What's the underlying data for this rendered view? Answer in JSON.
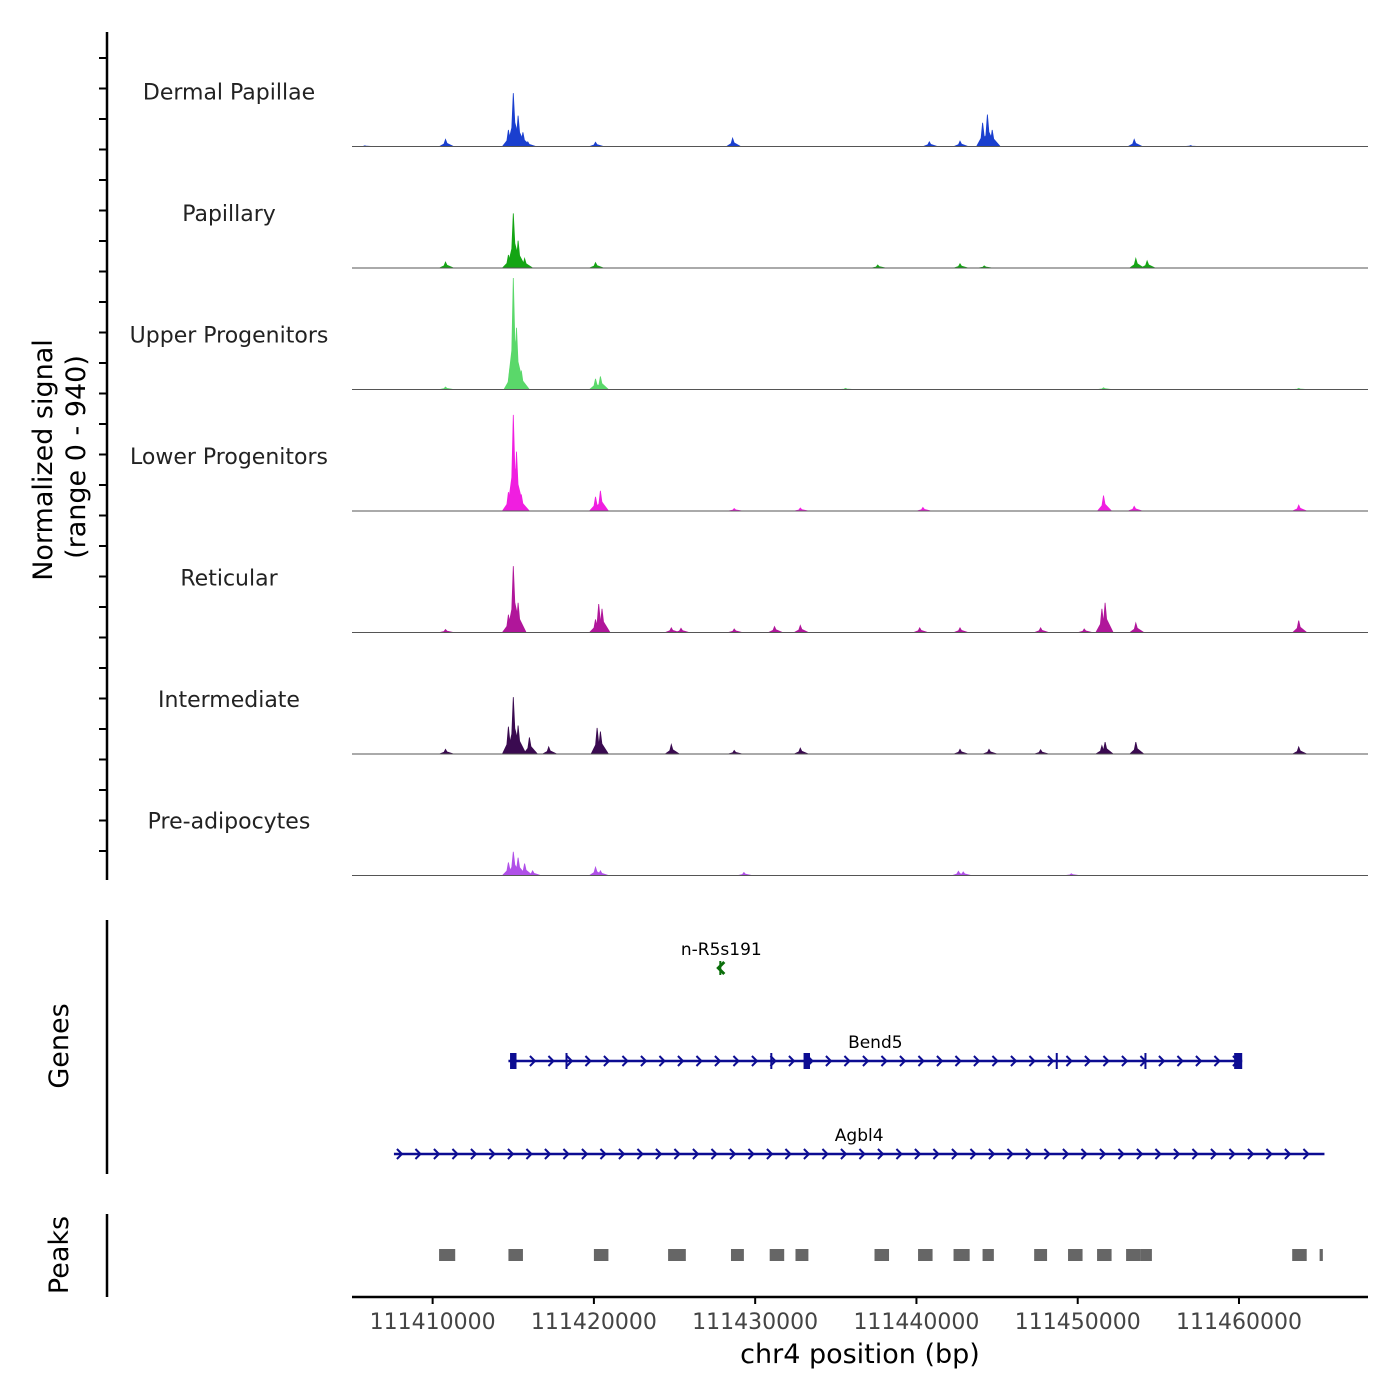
{
  "chart_data": {
    "type": "area",
    "title": "",
    "region": {
      "chrom": "chr4",
      "start": 111405000,
      "end": 111468000
    },
    "ylabel": "Normalized signal",
    "ylabel_range": "(range 0 - 940)",
    "ylim": [
      0,
      940
    ],
    "xlabel": "chr4 position (bp)",
    "x_ticks": [
      "111410000",
      "111420000",
      "111430000",
      "111440000",
      "111450000",
      "111460000"
    ],
    "x_tick_values": [
      111410000,
      111420000,
      111430000,
      111440000,
      111450000,
      111460000
    ],
    "tracks": [
      {
        "name": "Dermal Papillae",
        "color": "#1a3fcf",
        "peaks": [
          [
            111405800,
            6
          ],
          [
            111410800,
            60
          ],
          [
            111414700,
            140
          ],
          [
            111415000,
            450
          ],
          [
            111415300,
            260
          ],
          [
            111415600,
            120
          ],
          [
            111415900,
            40
          ],
          [
            111420100,
            35
          ],
          [
            111428600,
            70
          ],
          [
            111440800,
            40
          ],
          [
            111442700,
            45
          ],
          [
            111444100,
            200
          ],
          [
            111444400,
            270
          ],
          [
            111444700,
            140
          ],
          [
            111453500,
            60
          ],
          [
            111457000,
            8
          ]
        ]
      },
      {
        "name": "Papillary",
        "color": "#14a514",
        "peaks": [
          [
            111410800,
            50
          ],
          [
            111414700,
            110
          ],
          [
            111415000,
            460
          ],
          [
            111415300,
            230
          ],
          [
            111415700,
            80
          ],
          [
            111420100,
            45
          ],
          [
            111437600,
            25
          ],
          [
            111442700,
            35
          ],
          [
            111444200,
            18
          ],
          [
            111453600,
            80
          ],
          [
            111454300,
            60
          ]
        ]
      },
      {
        "name": "Upper Progenitors",
        "color": "#5ad86a",
        "peaks": [
          [
            111410800,
            20
          ],
          [
            111414800,
            190
          ],
          [
            111415000,
            940
          ],
          [
            111415200,
            520
          ],
          [
            111415500,
            160
          ],
          [
            111420100,
            90
          ],
          [
            111420400,
            110
          ],
          [
            111435600,
            10
          ],
          [
            111451600,
            15
          ],
          [
            111463700,
            10
          ]
        ]
      },
      {
        "name": "Lower Progenitors",
        "color": "#f01ee0",
        "peaks": [
          [
            111414700,
            160
          ],
          [
            111415000,
            810
          ],
          [
            111415200,
            500
          ],
          [
            111415500,
            140
          ],
          [
            111420100,
            120
          ],
          [
            111420400,
            170
          ],
          [
            111428700,
            20
          ],
          [
            111432800,
            25
          ],
          [
            111440400,
            30
          ],
          [
            111451600,
            130
          ],
          [
            111453500,
            40
          ],
          [
            111463700,
            50
          ]
        ]
      },
      {
        "name": "Reticular",
        "color": "#b0169a",
        "peaks": [
          [
            111410800,
            25
          ],
          [
            111414700,
            150
          ],
          [
            111415000,
            560
          ],
          [
            111415300,
            250
          ],
          [
            111420100,
            110
          ],
          [
            111420300,
            240
          ],
          [
            111420500,
            200
          ],
          [
            111424800,
            40
          ],
          [
            111425400,
            35
          ],
          [
            111428700,
            30
          ],
          [
            111431200,
            50
          ],
          [
            111432800,
            60
          ],
          [
            111440200,
            40
          ],
          [
            111442700,
            40
          ],
          [
            111447700,
            40
          ],
          [
            111450400,
            30
          ],
          [
            111451500,
            200
          ],
          [
            111451700,
            250
          ],
          [
            111453600,
            80
          ],
          [
            111463700,
            100
          ]
        ]
      },
      {
        "name": "Intermediate",
        "color": "#3a0a50",
        "peaks": [
          [
            111410800,
            40
          ],
          [
            111414700,
            230
          ],
          [
            111415000,
            480
          ],
          [
            111415300,
            240
          ],
          [
            111416000,
            140
          ],
          [
            111417200,
            60
          ],
          [
            111420200,
            220
          ],
          [
            111420400,
            190
          ],
          [
            111424800,
            80
          ],
          [
            111428700,
            30
          ],
          [
            111432800,
            50
          ],
          [
            111442700,
            40
          ],
          [
            111444500,
            40
          ],
          [
            111447700,
            35
          ],
          [
            111451500,
            70
          ],
          [
            111451700,
            100
          ],
          [
            111453600,
            100
          ],
          [
            111463700,
            60
          ]
        ]
      },
      {
        "name": "Pre-adipocytes",
        "color": "#b050e8",
        "peaks": [
          [
            111414700,
            110
          ],
          [
            111415000,
            200
          ],
          [
            111415300,
            150
          ],
          [
            111415700,
            100
          ],
          [
            111416200,
            40
          ],
          [
            111420100,
            70
          ],
          [
            111420400,
            40
          ],
          [
            111429300,
            25
          ],
          [
            111442600,
            35
          ],
          [
            111442900,
            30
          ],
          [
            111449600,
            15
          ]
        ]
      }
    ],
    "genes_label": "Genes",
    "genes": [
      {
        "name": "n-R5s191",
        "start": 111427700,
        "end": 111428100,
        "strand": "-",
        "color": "#0a6e0a",
        "exons": []
      },
      {
        "name": "Bend5",
        "start": 111414700,
        "end": 111460200,
        "strand": "+",
        "color": "#0c0c92",
        "exons": [
          [
            111414800,
            111415200
          ],
          [
            111433000,
            111433400
          ],
          [
            111459700,
            111460200
          ]
        ],
        "thin_marks": [
          111418300,
          111431000,
          111448700,
          111454200
        ]
      },
      {
        "name": "Agbl4",
        "start": 111407600,
        "end": 111465300,
        "strand": "+",
        "color": "#0c0c92",
        "exons": []
      }
    ],
    "peaks_label": "Peaks",
    "peak_regions": [
      [
        111410400,
        111411400
      ],
      [
        111414700,
        111415600
      ],
      [
        111420000,
        111420900
      ],
      [
        111424600,
        111425700
      ],
      [
        111428500,
        111429300
      ],
      [
        111430900,
        111431800
      ],
      [
        111432500,
        111433300
      ],
      [
        111437400,
        111438300
      ],
      [
        111440100,
        111441000
      ],
      [
        111442300,
        111443300
      ],
      [
        111444100,
        111444800
      ],
      [
        111447300,
        111448100
      ],
      [
        111449400,
        111450300
      ],
      [
        111451200,
        111452100
      ],
      [
        111453000,
        111453900
      ],
      [
        111453900,
        111454600
      ],
      [
        111463300,
        111464200
      ],
      [
        111465000,
        111465200
      ]
    ]
  }
}
